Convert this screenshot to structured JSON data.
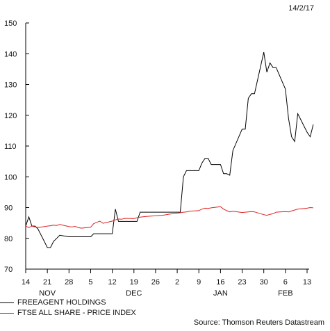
{
  "date_stamp": "14/2/17",
  "source": "Source: Thomson Reuters Datastream",
  "colors": {
    "series_1": "#000000",
    "series_2": "#e02020",
    "axis": "#000000"
  },
  "chart_data": {
    "type": "line",
    "title": "",
    "xlabel": "",
    "ylabel": "",
    "ylim": [
      70,
      150
    ],
    "yticks": [
      70,
      80,
      90,
      100,
      110,
      120,
      130,
      140,
      150
    ],
    "grid": false,
    "legend_placement": "bottom-left",
    "x_tick_labels": [
      "14",
      "21",
      "28",
      "5",
      "12",
      "19",
      "26",
      "2",
      "9",
      "16",
      "23",
      "30",
      "6",
      "13"
    ],
    "month_labels": [
      {
        "label": "NOV",
        "tick": 1
      },
      {
        "label": "DEC",
        "tick": 5
      },
      {
        "label": "JAN",
        "tick": 9
      },
      {
        "label": "FEB",
        "tick": 12
      }
    ],
    "x_dates": [
      "2016-11-14",
      "2016-11-21",
      "2016-11-28",
      "2016-12-05",
      "2016-12-12",
      "2016-12-19",
      "2016-12-26",
      "2017-01-02",
      "2017-01-09",
      "2017-01-16",
      "2017-01-23",
      "2017-01-30",
      "2017-02-06",
      "2017-02-13"
    ],
    "series": [
      {
        "name": "FREEAGENT HOLDINGS",
        "color": "#000000",
        "points": [
          [
            "2016-11-14",
            84
          ],
          [
            "2016-11-15",
            87
          ],
          [
            "2016-11-16",
            84
          ],
          [
            "2016-11-17",
            84
          ],
          [
            "2016-11-18",
            83
          ],
          [
            "2016-11-21",
            77
          ],
          [
            "2016-11-22",
            77
          ],
          [
            "2016-11-23",
            79
          ],
          [
            "2016-11-24",
            80
          ],
          [
            "2016-11-25",
            81
          ],
          [
            "2016-11-28",
            80.5
          ],
          [
            "2016-11-29",
            80.5
          ],
          [
            "2016-11-30",
            80.5
          ],
          [
            "2016-12-01",
            80.5
          ],
          [
            "2016-12-02",
            80.5
          ],
          [
            "2016-12-05",
            80.5
          ],
          [
            "2016-12-06",
            81.5
          ],
          [
            "2016-12-07",
            81.5
          ],
          [
            "2016-12-08",
            81.5
          ],
          [
            "2016-12-09",
            81.5
          ],
          [
            "2016-12-12",
            81.5
          ],
          [
            "2016-12-13",
            89.5
          ],
          [
            "2016-12-14",
            85.5
          ],
          [
            "2016-12-15",
            85.5
          ],
          [
            "2016-12-16",
            85.5
          ],
          [
            "2016-12-19",
            85.5
          ],
          [
            "2016-12-20",
            85.5
          ],
          [
            "2016-12-21",
            88.5
          ],
          [
            "2016-12-22",
            88.5
          ],
          [
            "2016-12-23",
            88.5
          ],
          [
            "2016-12-28",
            88.5
          ],
          [
            "2016-12-29",
            88.5
          ],
          [
            "2016-12-30",
            88.5
          ],
          [
            "2017-01-03",
            88.5
          ],
          [
            "2017-01-04",
            100
          ],
          [
            "2017-01-05",
            102
          ],
          [
            "2017-01-06",
            102
          ],
          [
            "2017-01-09",
            102
          ],
          [
            "2017-01-10",
            104.5
          ],
          [
            "2017-01-11",
            106
          ],
          [
            "2017-01-12",
            106
          ],
          [
            "2017-01-13",
            104
          ],
          [
            "2017-01-16",
            104
          ],
          [
            "2017-01-17",
            101
          ],
          [
            "2017-01-18",
            101
          ],
          [
            "2017-01-19",
            100.5
          ],
          [
            "2017-01-20",
            108.5
          ],
          [
            "2017-01-23",
            115.5
          ],
          [
            "2017-01-24",
            115.5
          ],
          [
            "2017-01-25",
            125.5
          ],
          [
            "2017-01-26",
            127
          ],
          [
            "2017-01-27",
            127
          ],
          [
            "2017-01-30",
            140.5
          ],
          [
            "2017-01-31",
            134
          ],
          [
            "2017-02-01",
            137
          ],
          [
            "2017-02-02",
            135.5
          ],
          [
            "2017-02-03",
            135.5
          ],
          [
            "2017-02-06",
            128.5
          ],
          [
            "2017-02-07",
            119
          ],
          [
            "2017-02-08",
            113
          ],
          [
            "2017-02-09",
            111.5
          ],
          [
            "2017-02-10",
            120.5
          ],
          [
            "2017-02-13",
            114.5
          ],
          [
            "2017-02-14",
            113
          ],
          [
            "2017-02-15",
            117
          ]
        ]
      },
      {
        "name": "FTSE ALL SHARE - PRICE INDEX",
        "color": "#e02020",
        "points": [
          [
            "2016-11-14",
            84
          ],
          [
            "2016-11-15",
            83.5
          ],
          [
            "2016-11-16",
            84
          ],
          [
            "2016-11-17",
            83.7
          ],
          [
            "2016-11-18",
            83.5
          ],
          [
            "2016-11-21",
            84
          ],
          [
            "2016-11-22",
            84.1
          ],
          [
            "2016-11-23",
            84.3
          ],
          [
            "2016-11-24",
            84.2
          ],
          [
            "2016-11-25",
            84.5
          ],
          [
            "2016-11-28",
            83.8
          ],
          [
            "2016-11-29",
            83.7
          ],
          [
            "2016-11-30",
            83.9
          ],
          [
            "2016-12-01",
            83.5
          ],
          [
            "2016-12-02",
            83.3
          ],
          [
            "2016-12-05",
            83.6
          ],
          [
            "2016-12-06",
            84.8
          ],
          [
            "2016-12-07",
            85.2
          ],
          [
            "2016-12-08",
            85.6
          ],
          [
            "2016-12-09",
            84.9
          ],
          [
            "2016-12-12",
            85.6
          ],
          [
            "2016-12-13",
            86
          ],
          [
            "2016-12-14",
            86.3
          ],
          [
            "2016-12-15",
            86.2
          ],
          [
            "2016-12-16",
            86.5
          ],
          [
            "2016-12-19",
            86.4
          ],
          [
            "2016-12-20",
            86.7
          ],
          [
            "2016-12-21",
            86.9
          ],
          [
            "2016-12-22",
            87
          ],
          [
            "2016-12-23",
            87.1
          ],
          [
            "2016-12-28",
            87.5
          ],
          [
            "2016-12-29",
            87.6
          ],
          [
            "2016-12-30",
            87.8
          ],
          [
            "2017-01-03",
            88.3
          ],
          [
            "2017-01-04",
            88.5
          ],
          [
            "2017-01-05",
            88.6
          ],
          [
            "2017-01-06",
            88.8
          ],
          [
            "2017-01-09",
            89
          ],
          [
            "2017-01-10",
            89.5
          ],
          [
            "2017-01-11",
            89.8
          ],
          [
            "2017-01-12",
            89.7
          ],
          [
            "2017-01-13",
            89.9
          ],
          [
            "2017-01-16",
            90.3
          ],
          [
            "2017-01-17",
            89.5
          ],
          [
            "2017-01-18",
            89
          ],
          [
            "2017-01-19",
            88.6
          ],
          [
            "2017-01-20",
            88.8
          ],
          [
            "2017-01-23",
            88.4
          ],
          [
            "2017-01-24",
            88.5
          ],
          [
            "2017-01-25",
            88.6
          ],
          [
            "2017-01-26",
            88.7
          ],
          [
            "2017-01-27",
            88.6
          ],
          [
            "2017-01-30",
            87.7
          ],
          [
            "2017-01-31",
            87.5
          ],
          [
            "2017-02-01",
            87.8
          ],
          [
            "2017-02-02",
            88
          ],
          [
            "2017-02-03",
            88.5
          ],
          [
            "2017-02-06",
            88.7
          ],
          [
            "2017-02-07",
            88.6
          ],
          [
            "2017-02-08",
            88.9
          ],
          [
            "2017-02-09",
            89.2
          ],
          [
            "2017-02-10",
            89.5
          ],
          [
            "2017-02-13",
            89.8
          ],
          [
            "2017-02-14",
            90
          ],
          [
            "2017-02-15",
            89.9
          ]
        ]
      }
    ]
  }
}
